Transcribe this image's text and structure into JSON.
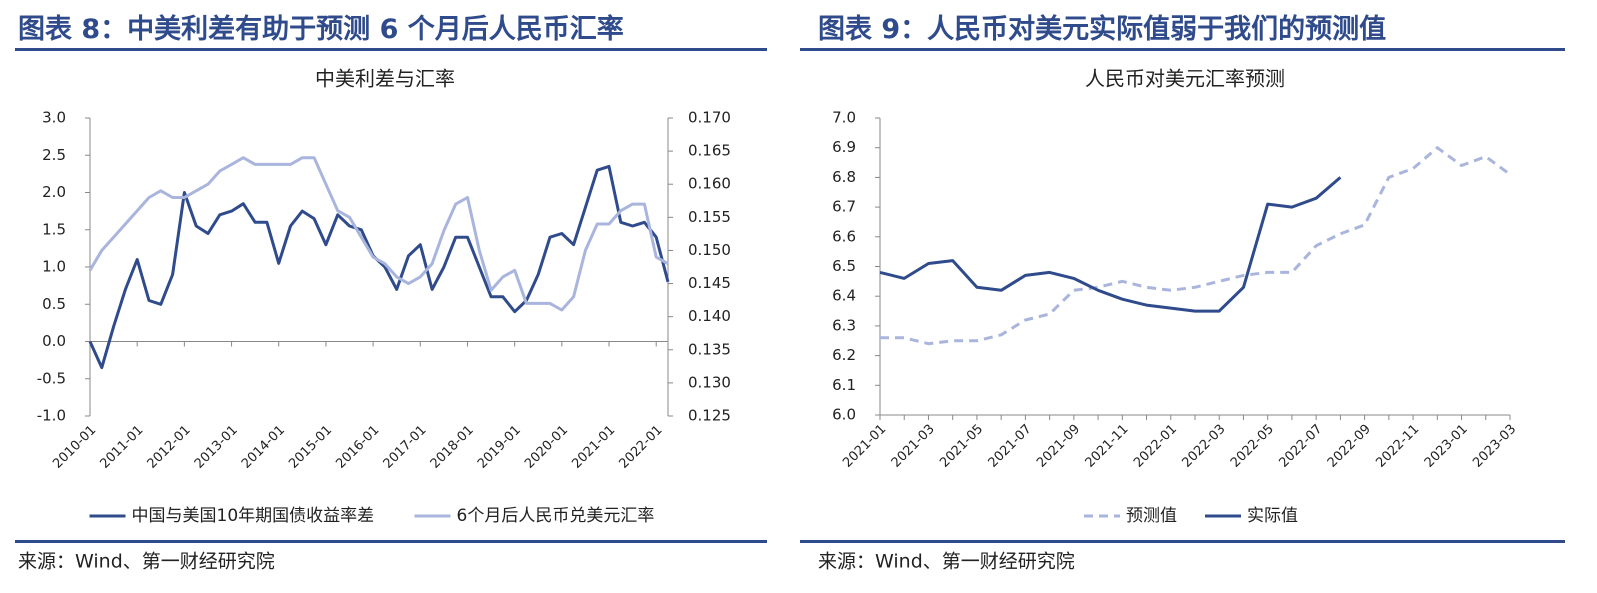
{
  "chart_data": [
    {
      "type": "line",
      "figure_title": "图表 8：中美利差有助于预测 6 个月后人民币汇率",
      "title": "中美利差与汇率",
      "source": "来源：Wind、第一财经研究院",
      "x": [
        2010.0,
        2010.25,
        2010.5,
        2010.75,
        2011.0,
        2011.25,
        2011.5,
        2011.75,
        2012.0,
        2012.25,
        2012.5,
        2012.75,
        2013.0,
        2013.25,
        2013.5,
        2013.75,
        2014.0,
        2014.25,
        2014.5,
        2014.75,
        2015.0,
        2015.25,
        2015.5,
        2015.75,
        2016.0,
        2016.25,
        2016.5,
        2016.75,
        2017.0,
        2017.25,
        2017.5,
        2017.75,
        2018.0,
        2018.25,
        2018.5,
        2018.75,
        2019.0,
        2019.25,
        2019.5,
        2019.75,
        2020.0,
        2020.25,
        2020.5,
        2020.75,
        2021.0,
        2021.25,
        2021.5,
        2021.75,
        2022.0,
        2022.25
      ],
      "xlim": [
        2010.0,
        2022.25
      ],
      "xticks": [
        {
          "value": 2010,
          "label": "2010-01"
        },
        {
          "value": 2011,
          "label": "2011-01"
        },
        {
          "value": 2012,
          "label": "2012-01"
        },
        {
          "value": 2013,
          "label": "2013-01"
        },
        {
          "value": 2014,
          "label": "2014-01"
        },
        {
          "value": 2015,
          "label": "2015-01"
        },
        {
          "value": 2016,
          "label": "2016-01"
        },
        {
          "value": 2017,
          "label": "2017-01"
        },
        {
          "value": 2018,
          "label": "2018-01"
        },
        {
          "value": 2019,
          "label": "2019-01"
        },
        {
          "value": 2020,
          "label": "2020-01"
        },
        {
          "value": 2021,
          "label": "2021-01"
        },
        {
          "value": 2022,
          "label": "2022-01"
        }
      ],
      "ylim": [
        -1,
        3
      ],
      "yticks": [
        {
          "value": 3,
          "label": "3.0"
        },
        2.5,
        {
          "value": 2,
          "label": "2.0"
        },
        1.5,
        {
          "value": 1,
          "label": "1.0"
        },
        0.5,
        {
          "value": 0,
          "label": "0.0"
        },
        -0.5,
        {
          "value": -1,
          "label": "-1.0"
        }
      ],
      "y2lim": [
        0.125,
        0.17
      ],
      "y2ticks": [
        {
          "value": 0.17,
          "label": "0.170"
        },
        0.165,
        {
          "value": 0.16,
          "label": "0.160"
        },
        0.155,
        {
          "value": 0.15,
          "label": "0.150"
        },
        0.145,
        {
          "value": 0.14,
          "label": "0.140"
        },
        0.135,
        {
          "value": 0.13,
          "label": "0.130"
        },
        0.125
      ],
      "legend": "bottom",
      "series": [
        {
          "name": "中国与美国10年期国债收益率差",
          "color": "#2f4b8c",
          "values": [
            0.0,
            -0.35,
            0.2,
            0.7,
            1.1,
            0.55,
            0.5,
            0.9,
            2.0,
            1.55,
            1.45,
            1.7,
            1.75,
            1.85,
            1.6,
            1.6,
            1.05,
            1.55,
            1.75,
            1.65,
            1.3,
            1.7,
            1.55,
            1.5,
            1.15,
            1.0,
            0.7,
            1.15,
            1.3,
            0.7,
            1.0,
            1.4,
            1.4,
            1.0,
            0.6,
            0.6,
            0.4,
            0.55,
            0.9,
            1.4,
            1.45,
            1.3,
            1.8,
            2.3,
            2.35,
            1.6,
            1.55,
            1.6,
            1.4,
            0.8
          ]
        },
        {
          "name": "6个月后人民币兑美元汇率",
          "color": "#a9b5dd",
          "axis": "y2",
          "values": [
            0.147,
            0.15,
            0.152,
            0.154,
            0.156,
            0.158,
            0.159,
            0.158,
            0.158,
            0.159,
            0.16,
            0.162,
            0.163,
            0.164,
            0.163,
            0.163,
            0.163,
            0.163,
            0.164,
            0.164,
            0.16,
            0.156,
            0.155,
            0.152,
            0.149,
            0.148,
            0.146,
            0.145,
            0.146,
            0.148,
            0.153,
            0.157,
            0.158,
            0.15,
            0.144,
            0.146,
            0.147,
            0.142,
            0.142,
            0.142,
            0.141,
            0.143,
            0.15,
            0.154,
            0.154,
            0.156,
            0.157,
            0.157,
            0.149,
            0.148
          ]
        }
      ]
    },
    {
      "type": "line",
      "figure_title": "图表 9：人民币对美元实际值弱于我们的预测值",
      "title": "人民币对美元汇率预测",
      "source": "来源：Wind、第一财经研究院",
      "categories": [
        "2021-01",
        null,
        "2021-03",
        null,
        "2021-05",
        null,
        "2021-07",
        null,
        "2021-09",
        null,
        "2021-11",
        null,
        "2022-01",
        null,
        "2022-03",
        null,
        "2022-05",
        null,
        "2022-07",
        null,
        "2022-09",
        null,
        "2022-11",
        null,
        "2023-01",
        null,
        "2023-03"
      ],
      "ylim": [
        6.0,
        7.0
      ],
      "yticks": [
        {
          "value": 6,
          "label": "6.0"
        },
        6.1,
        6.2,
        6.3,
        6.4,
        6.5,
        6.6,
        6.7,
        6.8,
        6.9,
        {
          "value": 7,
          "label": "7.0"
        }
      ],
      "legend": "bottom",
      "series": [
        {
          "name": "预测值",
          "color": "#a9b5dd",
          "dashed": true,
          "values": [
            6.26,
            6.26,
            6.24,
            6.25,
            6.25,
            6.27,
            6.32,
            6.34,
            6.42,
            6.43,
            6.45,
            6.43,
            6.42,
            6.43,
            6.45,
            6.47,
            6.48,
            6.48,
            6.57,
            6.61,
            6.64,
            6.8,
            6.83,
            6.9,
            6.84,
            6.87,
            6.81
          ]
        },
        {
          "name": "实际值",
          "color": "#2f4b8c",
          "values": [
            6.48,
            6.46,
            6.51,
            6.52,
            6.43,
            6.42,
            6.47,
            6.48,
            6.46,
            6.42,
            6.39,
            6.37,
            6.36,
            6.35,
            6.35,
            6.43,
            6.71,
            6.7,
            6.73,
            6.8,
            null,
            null,
            null,
            null,
            null,
            null,
            null
          ]
        }
      ]
    }
  ]
}
